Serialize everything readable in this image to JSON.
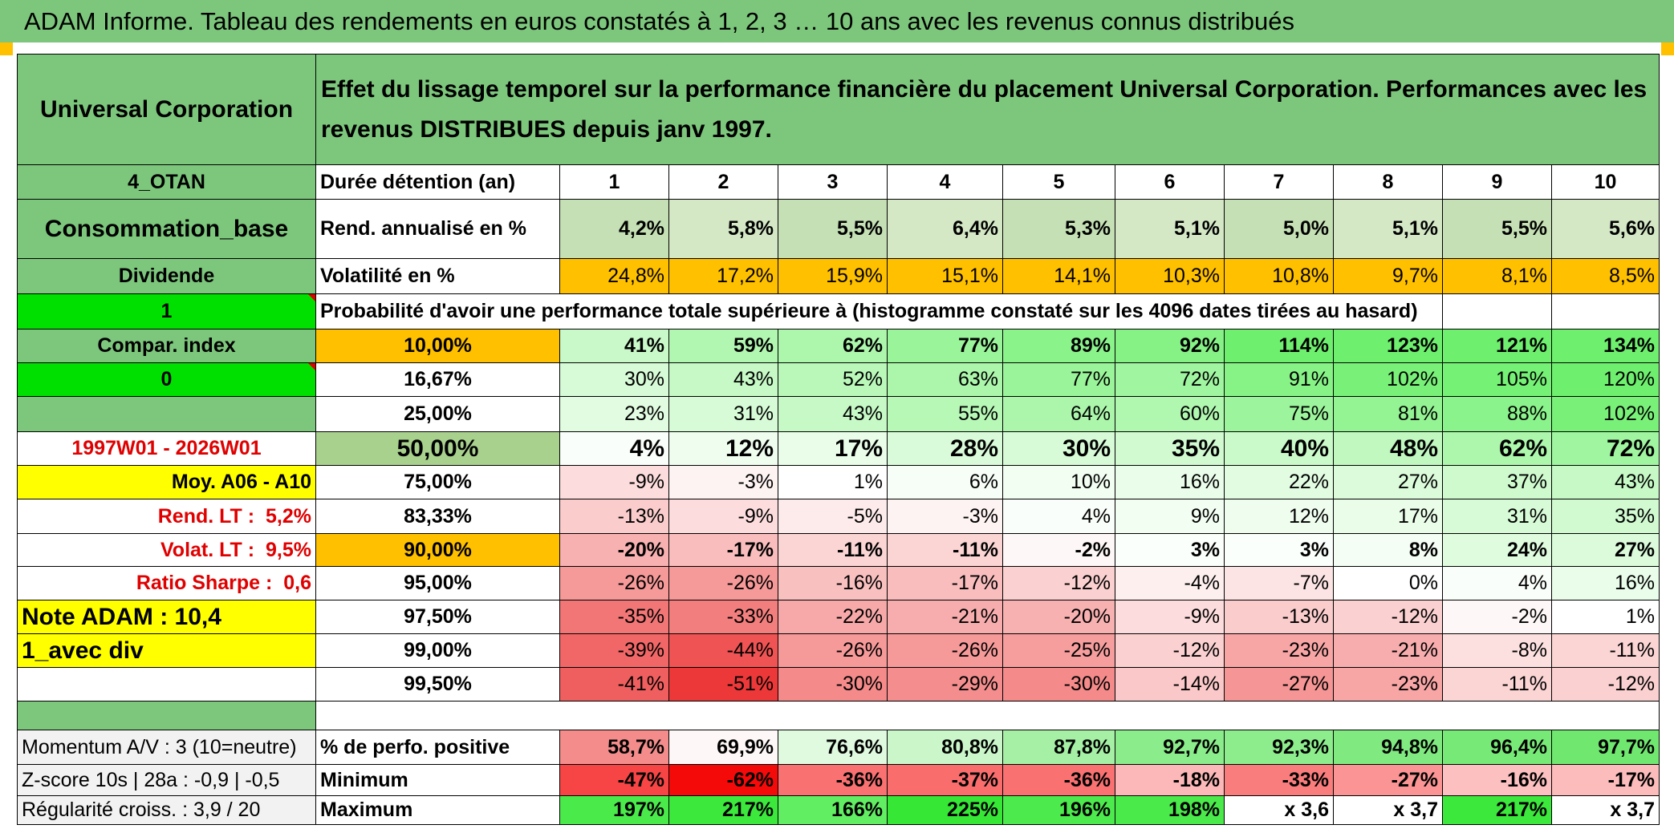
{
  "title": "ADAM Informe. Tableau des rendements en euros constatés à 1, 2, 3 … 10 ans avec les revenus connus distribués",
  "header": {
    "fund_name": "Universal Corporation",
    "description": "Effet du lissage temporel sur la performance financière du placement Universal Corporation. Performances avec les revenus DISTRIBUES depuis janv 1997."
  },
  "left_panel": {
    "code": "4_OTAN",
    "category": "Consommation_base",
    "dividend_label": "Dividende",
    "param_1": "1",
    "compar_index": "Compar. index",
    "param_0": "0",
    "period": "1997W01 - 2026W01",
    "moy_label": "Moy. A06 - A10",
    "rend_lt_label": "Rend. LT :",
    "rend_lt_value": "5,2%",
    "volat_lt_label": "Volat. LT :",
    "volat_lt_value": "9,5%",
    "sharpe_label": "Ratio Sharpe :",
    "sharpe_value": "0,6",
    "note_adam": "Note ADAM : 10,4",
    "avec_div": "1_avec div",
    "momentum": "Momentum A/V : 3 (10=neutre)",
    "zscore": "Z-score 10s | 28a : -0,9 | -0,5",
    "regularite": "Régularité croiss. : 3,9 / 20"
  },
  "table": {
    "duration_label": "Durée détention (an)",
    "years": [
      "1",
      "2",
      "3",
      "4",
      "5",
      "6",
      "7",
      "8",
      "9",
      "10"
    ],
    "rend_label": "Rend. annualisé en %",
    "rend_values": [
      "4,2%",
      "5,8%",
      "5,5%",
      "6,4%",
      "5,3%",
      "5,1%",
      "5,0%",
      "5,1%",
      "5,5%",
      "5,6%"
    ],
    "vol_label": "Volatilité en %",
    "vol_values": [
      "24,8%",
      "17,2%",
      "15,9%",
      "15,1%",
      "14,1%",
      "10,3%",
      "10,8%",
      "9,7%",
      "8,1%",
      "8,5%"
    ],
    "prob_heading": "Probabilité d'avoir une performance totale supérieure à (histogramme constaté sur les 4096 dates tirées au hasard)",
    "prob_rows": [
      {
        "threshold": "10,00%",
        "values": [
          "41%",
          "59%",
          "62%",
          "77%",
          "89%",
          "92%",
          "114%",
          "123%",
          "121%",
          "134%"
        ]
      },
      {
        "threshold": "16,67%",
        "values": [
          "30%",
          "43%",
          "52%",
          "63%",
          "77%",
          "72%",
          "91%",
          "102%",
          "105%",
          "120%"
        ]
      },
      {
        "threshold": "25,00%",
        "values": [
          "23%",
          "31%",
          "43%",
          "55%",
          "64%",
          "60%",
          "75%",
          "81%",
          "88%",
          "102%"
        ]
      },
      {
        "threshold": "50,00%",
        "values": [
          "4%",
          "12%",
          "17%",
          "28%",
          "30%",
          "35%",
          "40%",
          "48%",
          "62%",
          "72%"
        ]
      },
      {
        "threshold": "75,00%",
        "values": [
          "-9%",
          "-3%",
          "1%",
          "6%",
          "10%",
          "16%",
          "22%",
          "27%",
          "37%",
          "43%"
        ]
      },
      {
        "threshold": "83,33%",
        "values": [
          "-13%",
          "-9%",
          "-5%",
          "-3%",
          "4%",
          "9%",
          "12%",
          "17%",
          "31%",
          "35%"
        ]
      },
      {
        "threshold": "90,00%",
        "values": [
          "-20%",
          "-17%",
          "-11%",
          "-11%",
          "-2%",
          "3%",
          "3%",
          "8%",
          "24%",
          "27%"
        ]
      },
      {
        "threshold": "95,00%",
        "values": [
          "-26%",
          "-26%",
          "-16%",
          "-17%",
          "-12%",
          "-4%",
          "-7%",
          "0%",
          "4%",
          "16%"
        ]
      },
      {
        "threshold": "97,50%",
        "values": [
          "-35%",
          "-33%",
          "-22%",
          "-21%",
          "-20%",
          "-9%",
          "-13%",
          "-12%",
          "-2%",
          "1%"
        ]
      },
      {
        "threshold": "99,00%",
        "values": [
          "-39%",
          "-44%",
          "-26%",
          "-26%",
          "-25%",
          "-12%",
          "-23%",
          "-21%",
          "-8%",
          "-11%"
        ]
      },
      {
        "threshold": "99,50%",
        "values": [
          "-41%",
          "-51%",
          "-30%",
          "-29%",
          "-30%",
          "-14%",
          "-27%",
          "-23%",
          "-11%",
          "-12%"
        ]
      }
    ],
    "pos_label": "% de perfo. positive",
    "pos_values": [
      "58,7%",
      "69,9%",
      "76,6%",
      "80,8%",
      "87,8%",
      "92,7%",
      "92,3%",
      "94,8%",
      "96,4%",
      "97,7%"
    ],
    "min_label": "Minimum",
    "min_values": [
      "-47%",
      "-62%",
      "-36%",
      "-37%",
      "-36%",
      "-18%",
      "-33%",
      "-27%",
      "-16%",
      "-17%"
    ],
    "max_label": "Maximum",
    "max_values": [
      "197%",
      "217%",
      "166%",
      "225%",
      "196%",
      "198%",
      "x 3,6",
      "x 3,7",
      "217%",
      "x 3,7"
    ]
  },
  "colors": {
    "header_green": "#7dc77d",
    "bright_green": "#00e000",
    "orange": "#ffc000",
    "yellow": "#ffff00",
    "label_red": "#e00000",
    "rend_green": "#c5e0b4",
    "light_green": "#a9d18e",
    "light_gray": "#f2f2f2"
  }
}
